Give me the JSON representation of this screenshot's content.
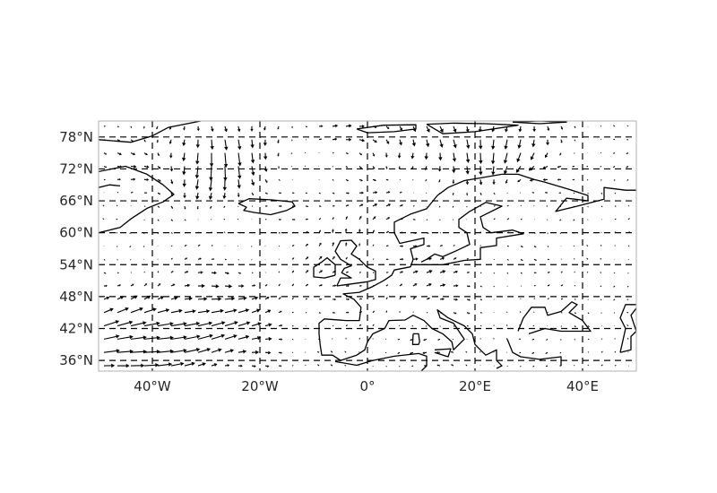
{
  "figure": {
    "type": "vector-field map",
    "projection": "PlateCarree",
    "extent": {
      "lon": [
        -50,
        50
      ],
      "lat": [
        34,
        81
      ]
    }
  },
  "axes": {
    "lat_ticks": [
      {
        "value": 78,
        "label": "78°N"
      },
      {
        "value": 72,
        "label": "72°N"
      },
      {
        "value": 66,
        "label": "66°N"
      },
      {
        "value": 60,
        "label": "60°N"
      },
      {
        "value": 54,
        "label": "54°N"
      },
      {
        "value": 48,
        "label": "48°N"
      },
      {
        "value": 42,
        "label": "42°N"
      },
      {
        "value": 36,
        "label": "36°N"
      }
    ],
    "lon_ticks": [
      {
        "value": -40,
        "label": "40°W"
      },
      {
        "value": -20,
        "label": "20°W"
      },
      {
        "value": 0,
        "label": "0°"
      },
      {
        "value": 20,
        "label": "20°E"
      },
      {
        "value": 40,
        "label": "40°E"
      }
    ],
    "gridlines": true,
    "gridline_style": "dashed"
  },
  "colors": {
    "arrows": "#000000",
    "coastline": "#000000",
    "frame": "#b0b0b0",
    "grid": "#000000"
  },
  "chart_data": {
    "type": "quiver",
    "grid_spacing_deg": 2.5,
    "feature_summary": "Strong westerly flow over the North Atlantic (40°W–20°W, 36°N–48°N); northerly flow east of Greenland and over the Barents Sea; weak, variable winds over central Europe and the Mediterranean",
    "coastlines": [
      {
        "name": "Greenland",
        "points": [
          [
            -50,
            77.5
          ],
          [
            -44,
            77
          ],
          [
            -40,
            78.2
          ],
          [
            -37,
            79.8
          ],
          [
            -31,
            81
          ]
        ]
      },
      {
        "name": "Greenland-south",
        "points": [
          [
            -50,
            71.5
          ],
          [
            -45,
            72.5
          ],
          [
            -41,
            71
          ],
          [
            -38,
            69
          ],
          [
            -36,
            67.2
          ],
          [
            -38,
            65.8
          ],
          [
            -41,
            64.6
          ],
          [
            -44,
            62.6
          ],
          [
            -46,
            61
          ],
          [
            -48,
            60.5
          ],
          [
            -50,
            60
          ]
        ]
      },
      {
        "name": "Iceland",
        "points": [
          [
            -24,
            65.5
          ],
          [
            -22,
            66.4
          ],
          [
            -18,
            66.2
          ],
          [
            -14,
            65.8
          ],
          [
            -13.5,
            65
          ],
          [
            -15,
            64.2
          ],
          [
            -18,
            63.4
          ],
          [
            -21,
            63.8
          ],
          [
            -23,
            64.2
          ],
          [
            -22.5,
            64.8
          ],
          [
            -24,
            65.5
          ]
        ]
      },
      {
        "name": "Svalbard",
        "points": [
          [
            -2,
            79.5
          ],
          [
            3,
            80.2
          ],
          [
            9,
            80.3
          ],
          [
            9,
            79.5
          ],
          [
            5,
            79
          ],
          [
            0,
            78.8
          ],
          [
            -2,
            79.5
          ]
        ]
      },
      {
        "name": "Spitsbergen",
        "points": [
          [
            11,
            80.4
          ],
          [
            16,
            80.6
          ],
          [
            22,
            80.5
          ],
          [
            28,
            80.2
          ],
          [
            20,
            79
          ],
          [
            14,
            78.6
          ],
          [
            11,
            80.4
          ]
        ]
      },
      {
        "name": "Franz-Josef",
        "points": [
          [
            27,
            80.8
          ],
          [
            32,
            81
          ],
          [
            37,
            80.8
          ],
          [
            32,
            80.5
          ],
          [
            27,
            80.8
          ]
        ]
      },
      {
        "name": "Scandinavia",
        "points": [
          [
            24,
            34.5
          ],
          [
            25,
            35
          ],
          [
            24,
            36
          ],
          [
            24,
            38
          ],
          [
            22,
            37
          ],
          [
            21,
            38
          ],
          [
            20,
            39
          ],
          [
            19.5,
            41
          ],
          [
            18,
            42.5
          ],
          [
            15,
            44
          ],
          [
            13,
            45.5
          ],
          [
            13.5,
            44
          ],
          [
            16,
            43
          ],
          [
            18,
            40
          ],
          [
            16,
            38
          ],
          [
            15.7,
            39.5
          ],
          [
            14,
            41
          ],
          [
            12,
            42
          ],
          [
            10.5,
            43.5
          ],
          [
            8.5,
            44.5
          ],
          [
            7,
            43.6
          ],
          [
            4,
            43.5
          ],
          [
            3.2,
            42
          ],
          [
            1,
            41
          ],
          [
            0,
            39.5
          ],
          [
            -0.5,
            38
          ],
          [
            -2,
            37
          ],
          [
            -5,
            36
          ],
          [
            -6.5,
            37
          ],
          [
            -8.5,
            37
          ],
          [
            -8.8,
            39
          ],
          [
            -9,
            41
          ],
          [
            -9,
            43
          ],
          [
            -8,
            43.8
          ],
          [
            -4,
            43.5
          ],
          [
            -1.5,
            43.5
          ],
          [
            -1.2,
            46
          ],
          [
            -2.5,
            47.5
          ],
          [
            -4.5,
            48.5
          ],
          [
            -1.5,
            48.8
          ],
          [
            1,
            49.9
          ],
          [
            3,
            51
          ],
          [
            4.5,
            52
          ],
          [
            5,
            53
          ],
          [
            8,
            53.6
          ],
          [
            8.5,
            55
          ],
          [
            8,
            57
          ],
          [
            10.5,
            57.8
          ],
          [
            10.5,
            59
          ],
          [
            6,
            58
          ],
          [
            5,
            60
          ],
          [
            5,
            62
          ],
          [
            8,
            63.5
          ],
          [
            11,
            64.5
          ],
          [
            13,
            67
          ],
          [
            15,
            68.5
          ],
          [
            18,
            69.8
          ],
          [
            21,
            70.3
          ],
          [
            25,
            71
          ],
          [
            28,
            71
          ],
          [
            31,
            70
          ],
          [
            33,
            69.5
          ],
          [
            38,
            68
          ],
          [
            41,
            67
          ],
          [
            41,
            66
          ],
          [
            37,
            66.5
          ],
          [
            35,
            64
          ],
          [
            37,
            64.5
          ],
          [
            39,
            65
          ],
          [
            44,
            66.3
          ],
          [
            44,
            68.5
          ],
          [
            48,
            68
          ],
          [
            50,
            68
          ]
        ]
      },
      {
        "name": "Baltic",
        "points": [
          [
            8,
            54
          ],
          [
            11,
            54
          ],
          [
            14,
            54
          ],
          [
            18,
            54.8
          ],
          [
            21,
            55
          ],
          [
            21,
            57.2
          ],
          [
            24,
            57.6
          ],
          [
            24,
            59
          ],
          [
            29,
            59.8
          ],
          [
            27,
            60.5
          ],
          [
            23,
            60
          ],
          [
            21.5,
            61
          ],
          [
            21,
            63
          ],
          [
            25,
            65
          ],
          [
            22,
            65.7
          ],
          [
            19,
            64
          ],
          [
            17,
            62.5
          ],
          [
            17,
            61
          ],
          [
            18.5,
            60
          ],
          [
            19,
            57.8
          ],
          [
            16.5,
            56.6
          ],
          [
            14,
            55.5
          ],
          [
            12.5,
            56
          ],
          [
            11,
            55
          ],
          [
            10,
            54.5
          ]
        ]
      },
      {
        "name": "Britain",
        "points": [
          [
            -5.7,
            50
          ],
          [
            -5,
            51.5
          ],
          [
            -3,
            51.5
          ],
          [
            -4.8,
            52.5
          ],
          [
            -4.3,
            53.3
          ],
          [
            -3,
            53.8
          ],
          [
            -5,
            55
          ],
          [
            -6,
            56.5
          ],
          [
            -5,
            58.5
          ],
          [
            -3,
            58.6
          ],
          [
            -2,
            57.5
          ],
          [
            -3,
            56
          ],
          [
            -1.5,
            55
          ],
          [
            0,
            53.5
          ],
          [
            1.5,
            52.8
          ],
          [
            1.5,
            51.2
          ],
          [
            0,
            50.8
          ],
          [
            -3.5,
            50.3
          ],
          [
            -5.7,
            50
          ]
        ]
      },
      {
        "name": "Ireland",
        "points": [
          [
            -6,
            52
          ],
          [
            -6,
            54
          ],
          [
            -7.5,
            55.3
          ],
          [
            -8.5,
            54.5
          ],
          [
            -10,
            53.5
          ],
          [
            -10,
            51.7
          ],
          [
            -8,
            51.5
          ],
          [
            -6,
            52
          ]
        ]
      },
      {
        "name": "Black Sea",
        "points": [
          [
            28,
            41.5
          ],
          [
            29,
            44
          ],
          [
            30.5,
            46
          ],
          [
            33,
            46
          ],
          [
            33.5,
            44.5
          ],
          [
            36,
            45.2
          ],
          [
            38,
            47
          ],
          [
            39,
            46.5
          ],
          [
            37.5,
            45
          ],
          [
            40,
            43.5
          ],
          [
            41.5,
            41.5
          ],
          [
            36,
            41.5
          ],
          [
            33,
            42
          ],
          [
            30,
            41
          ]
        ]
      },
      {
        "name": "Caspian",
        "points": [
          [
            47,
            37.5
          ],
          [
            49,
            38
          ],
          [
            49,
            40.5
          ],
          [
            50,
            41.5
          ],
          [
            49,
            44.5
          ],
          [
            50.5,
            46.5
          ],
          [
            48,
            46.5
          ],
          [
            47,
            44
          ],
          [
            48,
            42
          ],
          [
            47,
            37.5
          ]
        ]
      },
      {
        "name": "Turkey",
        "points": [
          [
            26,
            40
          ],
          [
            27,
            37.5
          ],
          [
            28.5,
            36.7
          ],
          [
            32,
            36.2
          ],
          [
            36,
            36.7
          ],
          [
            36,
            35
          ]
        ]
      },
      {
        "name": "Corsica-Sardinia",
        "points": [
          [
            8.5,
            41
          ],
          [
            9.5,
            41
          ],
          [
            9.7,
            39.5
          ],
          [
            9.5,
            39
          ],
          [
            8.4,
            39
          ],
          [
            8.5,
            41
          ]
        ]
      },
      {
        "name": "Sicily",
        "points": [
          [
            12.5,
            38
          ],
          [
            15.5,
            38.2
          ],
          [
            15,
            36.7
          ],
          [
            12.5,
            37.5
          ]
        ]
      },
      {
        "name": "North Africa",
        "points": [
          [
            -6,
            35.8
          ],
          [
            -2,
            35.1
          ],
          [
            1,
            36
          ],
          [
            5,
            36.8
          ],
          [
            9.5,
            37.3
          ],
          [
            11,
            36.8
          ],
          [
            11,
            35
          ],
          [
            10,
            34
          ]
        ]
      },
      {
        "name": "Iceland-west",
        "points": [
          [
            -50,
            68.5
          ],
          [
            -48,
            69
          ],
          [
            -46,
            68.8
          ]
        ]
      }
    ]
  }
}
